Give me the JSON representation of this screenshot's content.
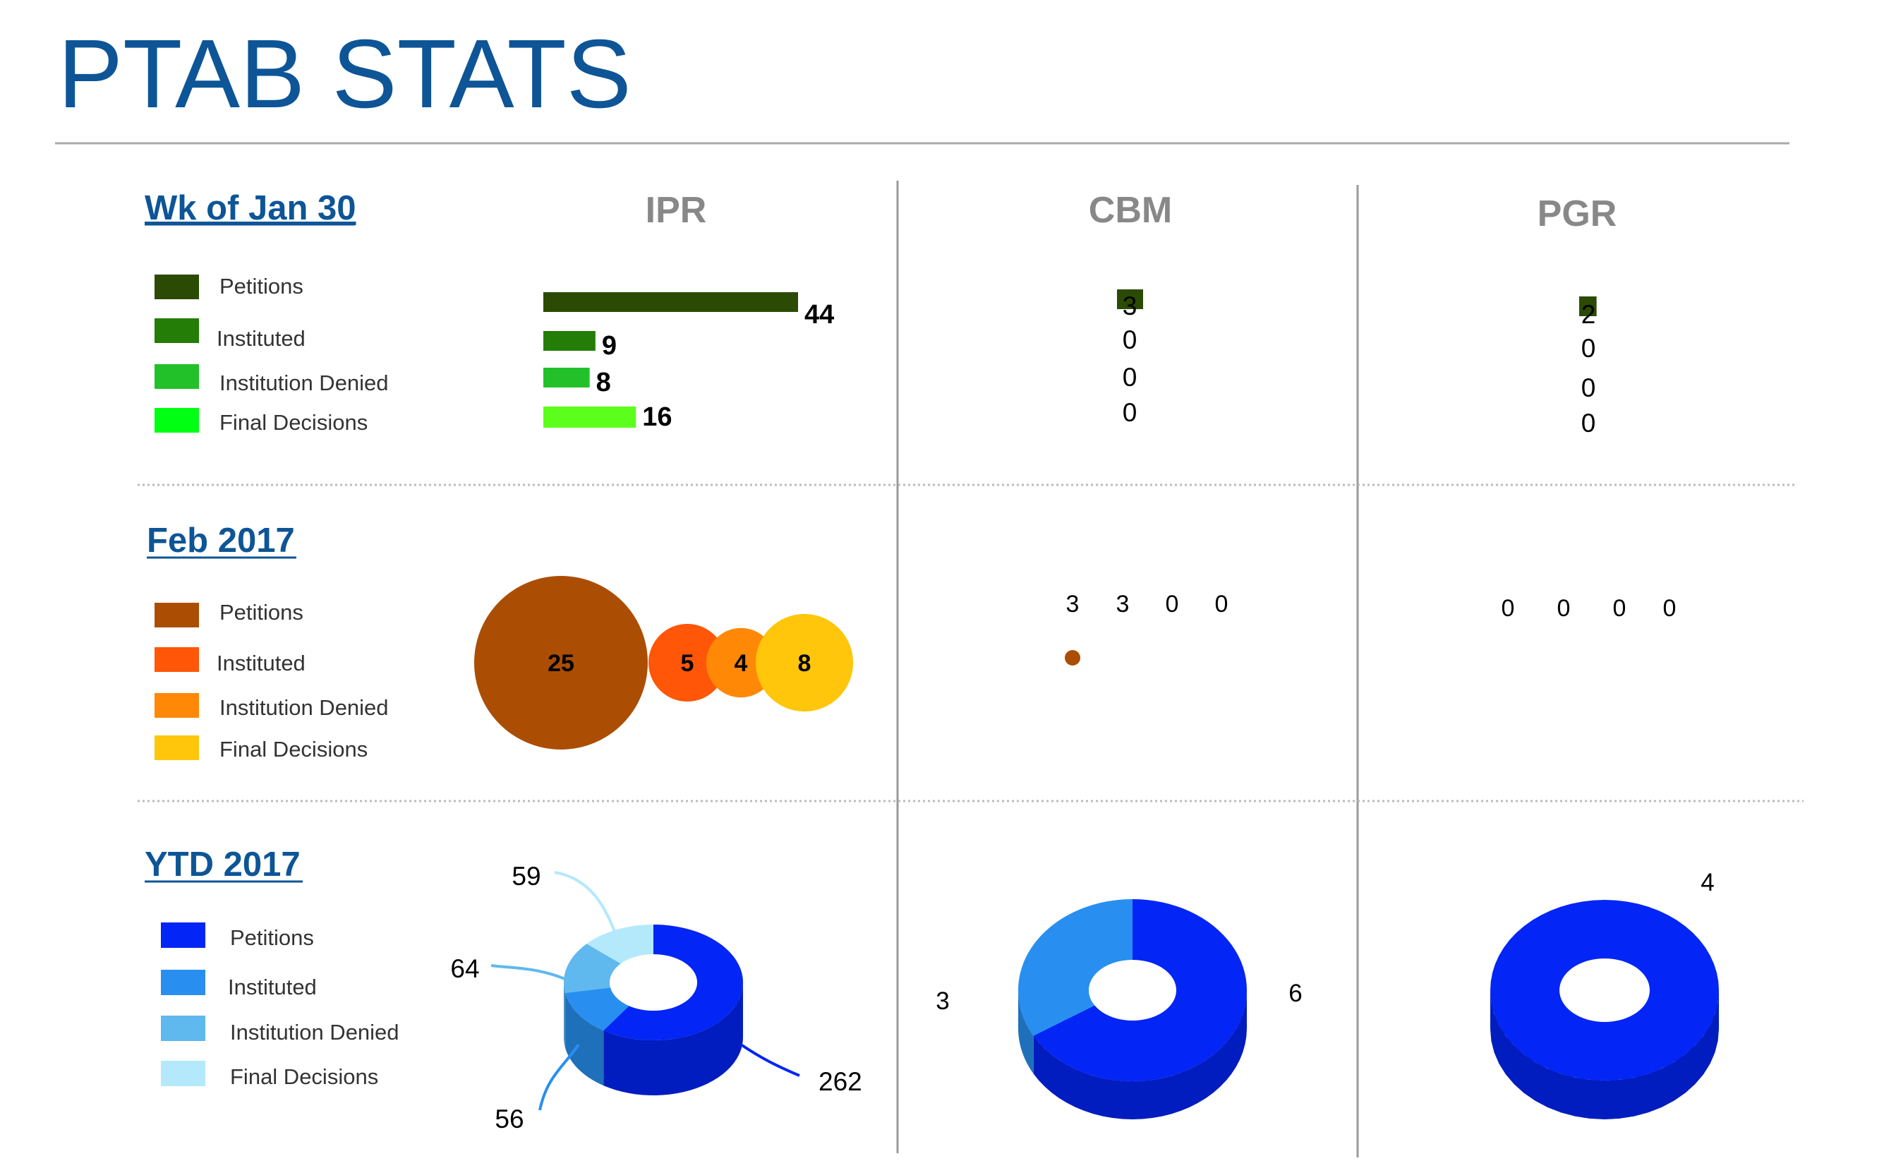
{
  "page": {
    "title": "PTAB STATS",
    "columns": [
      "IPR",
      "CBM",
      "PGR"
    ],
    "sections": [
      "Wk of Jan 30",
      "Feb 2017",
      "YTD 2017"
    ]
  },
  "legend": {
    "labels": [
      "Petitions",
      "Instituted",
      "Institution Denied",
      "Final Decisions"
    ],
    "colors": {
      "week": [
        "#2b4a04",
        "#237d06",
        "#22c12a",
        "#00ff12"
      ],
      "month": [
        "#ab4e04",
        "#ff5607",
        "#ff8807",
        "#ffc60b"
      ],
      "ytd": [
        "#0325f5",
        "#288ff0",
        "#5fb8ee",
        "#b3e9fb"
      ]
    }
  },
  "colors": {
    "title": "#0d5596",
    "column_header": "#888888",
    "section_link": "#0d5596",
    "week_final_bar": "#5cff1c",
    "divider": "#999999",
    "dotted": "#bbbbbb"
  },
  "chart_data": [
    {
      "id": "week-ipr",
      "type": "bar",
      "section": "Wk of Jan 30",
      "column": "IPR",
      "categories": [
        "Petitions",
        "Instituted",
        "Institution Denied",
        "Final Decisions"
      ],
      "values": [
        44,
        9,
        8,
        16
      ]
    },
    {
      "id": "week-cbm",
      "type": "bar",
      "section": "Wk of Jan 30",
      "column": "CBM",
      "categories": [
        "Petitions",
        "Instituted",
        "Institution Denied",
        "Final Decisions"
      ],
      "values": [
        3,
        0,
        0,
        0
      ]
    },
    {
      "id": "week-pgr",
      "type": "bar",
      "section": "Wk of Jan 30",
      "column": "PGR",
      "categories": [
        "Petitions",
        "Instituted",
        "Institution Denied",
        "Final Decisions"
      ],
      "values": [
        2,
        0,
        0,
        0
      ]
    },
    {
      "id": "month-ipr",
      "type": "scatter",
      "section": "Feb 2017",
      "column": "IPR",
      "categories": [
        "Petitions",
        "Instituted",
        "Institution Denied",
        "Final Decisions"
      ],
      "values": [
        25,
        5,
        4,
        8
      ]
    },
    {
      "id": "month-cbm",
      "type": "scatter",
      "section": "Feb 2017",
      "column": "CBM",
      "categories": [
        "Petitions",
        "Instituted",
        "Institution Denied",
        "Final Decisions"
      ],
      "values": [
        3,
        3,
        0,
        0
      ]
    },
    {
      "id": "month-pgr",
      "type": "scatter",
      "section": "Feb 2017",
      "column": "PGR",
      "categories": [
        "Petitions",
        "Instituted",
        "Institution Denied",
        "Final Decisions"
      ],
      "values": [
        0,
        0,
        0,
        0
      ]
    },
    {
      "id": "ytd-ipr",
      "type": "pie",
      "section": "YTD 2017",
      "column": "IPR",
      "categories": [
        "Petitions",
        "Instituted",
        "Institution Denied",
        "Final Decisions"
      ],
      "values": [
        262,
        56,
        64,
        59
      ]
    },
    {
      "id": "ytd-cbm",
      "type": "pie",
      "section": "YTD 2017",
      "column": "CBM",
      "categories": [
        "Petitions",
        "Instituted"
      ],
      "values": [
        6,
        3
      ]
    },
    {
      "id": "ytd-pgr",
      "type": "pie",
      "section": "YTD 2017",
      "column": "PGR",
      "categories": [
        "Petitions"
      ],
      "values": [
        4
      ]
    }
  ]
}
